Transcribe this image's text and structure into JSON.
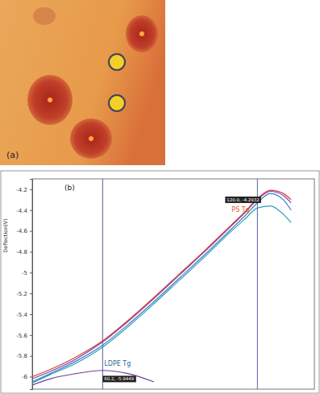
{
  "image_label": "(a)",
  "chart_data": {
    "type": "line",
    "annotations": [
      "(b)"
    ],
    "y_label": "Deflection(V)",
    "x": [
      33,
      40,
      50,
      60,
      70,
      80,
      90,
      100,
      110,
      115,
      120,
      125,
      130,
      133
    ],
    "xlim": [
      33,
      142
    ],
    "ylim": [
      -6.12,
      -4.1
    ],
    "yticks": [
      -4.2,
      -4.4,
      -4.6,
      -4.8,
      -5,
      -5.2,
      -5.4,
      -5.6,
      -5.8,
      -6
    ],
    "tick_labels": "y",
    "grid": false,
    "series": [
      {
        "color": "#3a7ad0",
        "values": [
          -6.05,
          -5.97,
          -5.85,
          -5.7,
          -5.5,
          -5.28,
          -5.05,
          -4.82,
          -4.58,
          -4.46,
          -4.33,
          -4.24,
          -4.3,
          -4.4
        ]
      },
      {
        "color": "#8040a0",
        "values": [
          -6.02,
          -5.95,
          -5.83,
          -5.67,
          -5.47,
          -5.25,
          -5.02,
          -4.79,
          -4.55,
          -4.43,
          -4.3,
          -4.22,
          -4.26,
          -4.33
        ]
      },
      {
        "color": "#d04040",
        "values": [
          -6.0,
          -5.93,
          -5.81,
          -5.66,
          -5.46,
          -5.24,
          -5.01,
          -4.78,
          -4.54,
          -4.42,
          -4.29,
          -4.21,
          -4.24,
          -4.3
        ]
      },
      {
        "color": "#30a0b0",
        "values": [
          -6.06,
          -5.98,
          -5.87,
          -5.72,
          -5.52,
          -5.3,
          -5.07,
          -4.84,
          -4.6,
          -4.49,
          -4.38,
          -4.36,
          -4.44,
          -4.52
        ]
      },
      {
        "color": "#7040a0",
        "values": [
          -6.08,
          -6.02,
          -5.97,
          -5.94,
          -5.97,
          -6.05,
          null,
          null,
          null,
          null,
          null,
          null,
          null,
          null
        ]
      }
    ],
    "markers": [
      {
        "x": 60.2,
        "y": -5.9449,
        "label": "60.2, -5.9449",
        "name": "LDPE Tg",
        "color": "#2a6a9a"
      },
      {
        "x": 120.0,
        "y": -4.2932,
        "label": "120.0, -4.2932",
        "name": "PS Tg",
        "color": "#e06020"
      }
    ]
  }
}
